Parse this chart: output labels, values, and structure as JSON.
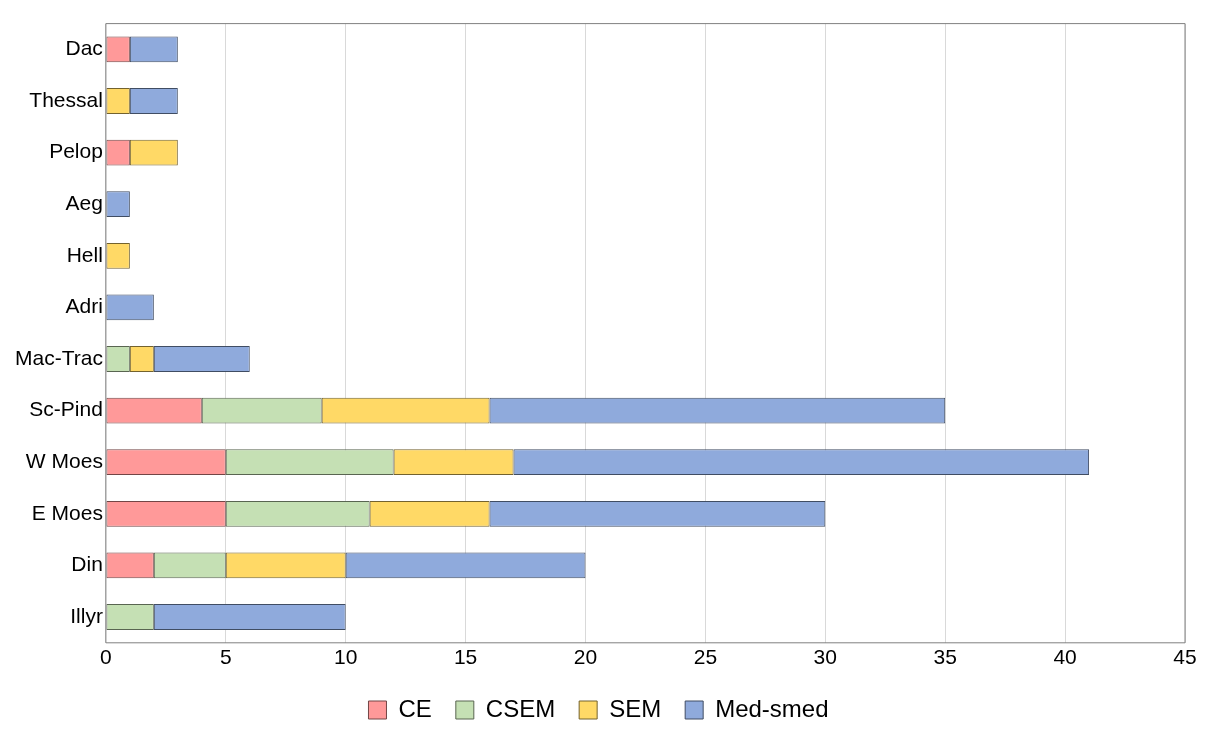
{
  "chart_data": {
    "type": "bar",
    "orientation": "horizontal",
    "stacked": true,
    "categories": [
      "Dac",
      "Thessal",
      "Pelop",
      "Aeg",
      "Hell",
      "Adri",
      "Mac-Trac",
      "Sc-Pind",
      "W Moes",
      "E Moes",
      "Din",
      "Illyr"
    ],
    "series": [
      {
        "name": "CE",
        "color": "#ff9999",
        "values": [
          1,
          null,
          1,
          null,
          null,
          null,
          null,
          4,
          5,
          5,
          2,
          null
        ]
      },
      {
        "name": "CSEM",
        "color": "#c5e0b4",
        "values": [
          null,
          null,
          null,
          null,
          null,
          null,
          1,
          5,
          7,
          6,
          3,
          2
        ]
      },
      {
        "name": "SEM",
        "color": "#ffd966",
        "values": [
          null,
          1,
          2,
          null,
          1,
          null,
          1,
          7,
          5,
          5,
          5,
          null
        ]
      },
      {
        "name": "Med-smed",
        "color": "#8faadc",
        "values": [
          2,
          2,
          null,
          1,
          null,
          2,
          4,
          19,
          24,
          14,
          10,
          8
        ]
      }
    ],
    "xlim": [
      0,
      45
    ],
    "xticks": [
      0,
      5,
      10,
      15,
      20,
      25,
      30,
      35,
      40,
      45
    ],
    "grid": "x",
    "legend": "bottom"
  }
}
